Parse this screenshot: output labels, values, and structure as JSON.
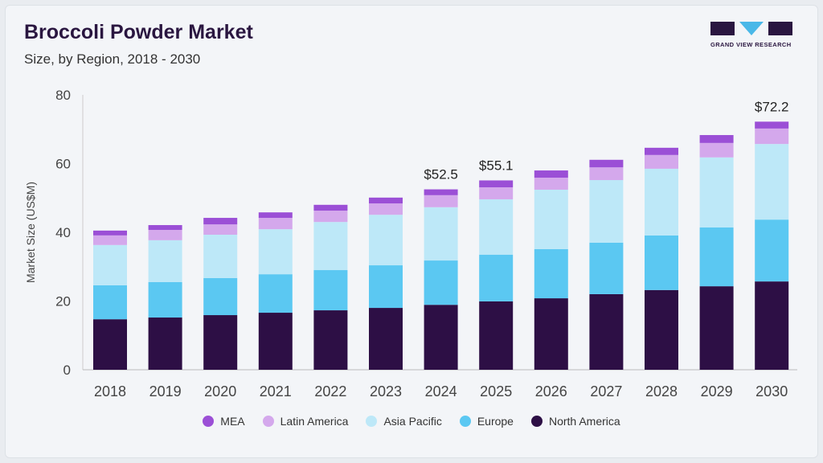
{
  "header": {
    "title": "Broccoli Powder Market",
    "subtitle": "Size, by Region, 2018 - 2030",
    "logo_text": "GRAND VIEW RESEARCH"
  },
  "colors": {
    "North America": "#2d0f45",
    "Europe": "#5bc8f2",
    "Asia Pacific": "#bde8f8",
    "Latin America": "#d4a8ec",
    "MEA": "#9b4fd6",
    "logo_dark": "#2a1640",
    "logo_accent": "#4ab8e8"
  },
  "chart_data": {
    "type": "bar",
    "stacked": true,
    "title": "Broccoli Powder Market",
    "xlabel": "",
    "ylabel": "Market Size (US$M)",
    "ylim": [
      0,
      80
    ],
    "yticks": [
      0,
      20,
      40,
      60,
      80
    ],
    "grid": false,
    "legend_position": "bottom",
    "categories": [
      "2018",
      "2019",
      "2020",
      "2021",
      "2022",
      "2023",
      "2024",
      "2025",
      "2026",
      "2027",
      "2028",
      "2029",
      "2030"
    ],
    "series": [
      {
        "name": "North America",
        "values": [
          14.7,
          15.2,
          15.9,
          16.6,
          17.3,
          18.0,
          18.9,
          19.9,
          20.8,
          22.0,
          23.2,
          24.3,
          25.7
        ]
      },
      {
        "name": "Europe",
        "values": [
          9.9,
          10.3,
          10.8,
          11.2,
          11.7,
          12.4,
          12.9,
          13.6,
          14.3,
          15.0,
          15.9,
          17.1,
          18.0
        ]
      },
      {
        "name": "Asia Pacific",
        "values": [
          11.7,
          12.2,
          12.6,
          13.1,
          14.0,
          14.7,
          15.5,
          16.1,
          17.3,
          18.2,
          19.4,
          20.4,
          22.0
        ]
      },
      {
        "name": "Latin America",
        "values": [
          2.8,
          3.0,
          3.0,
          3.3,
          3.3,
          3.3,
          3.5,
          3.5,
          3.5,
          3.7,
          4.0,
          4.2,
          4.5
        ]
      },
      {
        "name": "MEA",
        "values": [
          1.4,
          1.4,
          1.9,
          1.6,
          1.7,
          1.7,
          1.7,
          2.0,
          2.1,
          2.2,
          2.1,
          2.3,
          2.0
        ]
      }
    ],
    "annotations": [
      {
        "category": "2024",
        "label": "$52.5"
      },
      {
        "category": "2025",
        "label": "$55.1"
      },
      {
        "category": "2030",
        "label": "$72.2"
      }
    ],
    "legend": [
      "MEA",
      "Latin America",
      "Asia Pacific",
      "Europe",
      "North America"
    ]
  }
}
